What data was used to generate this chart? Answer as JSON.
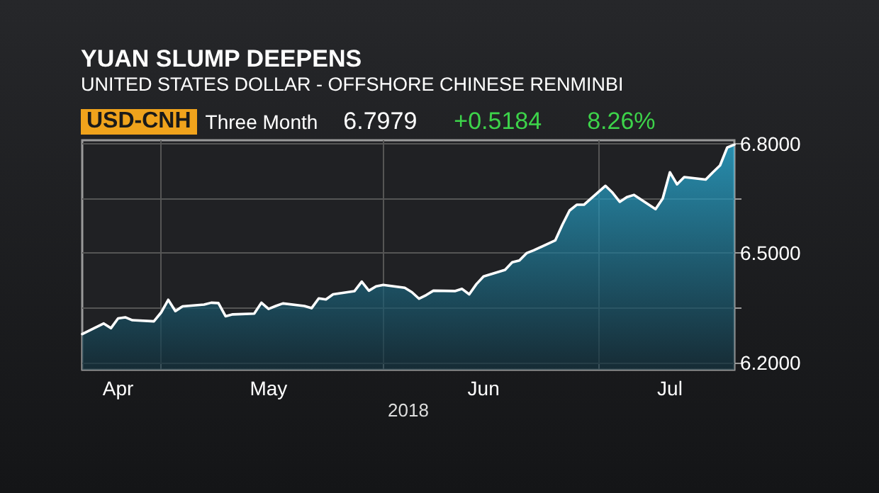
{
  "chart_data": {
    "type": "area",
    "title": "YUAN SLUMP DEEPENS",
    "subtitle": "UNITED STATES DOLLAR - OFFSHORE CHINESE RENMINBI",
    "annotations": [
      "USD-CNH",
      "Three Month",
      "6.7979",
      "+0.5184",
      "8.26%"
    ],
    "xlabel": "2018",
    "x": [
      "2018-04-20",
      "2018-04-23",
      "2018-04-24",
      "2018-04-25",
      "2018-04-26",
      "2018-04-27",
      "2018-04-30",
      "2018-05-01",
      "2018-05-02",
      "2018-05-03",
      "2018-05-04",
      "2018-05-07",
      "2018-05-08",
      "2018-05-09",
      "2018-05-10",
      "2018-05-11",
      "2018-05-14",
      "2018-05-15",
      "2018-05-16",
      "2018-05-17",
      "2018-05-18",
      "2018-05-21",
      "2018-05-22",
      "2018-05-23",
      "2018-05-24",
      "2018-05-25",
      "2018-05-28",
      "2018-05-29",
      "2018-05-30",
      "2018-05-31",
      "2018-06-01",
      "2018-06-04",
      "2018-06-05",
      "2018-06-06",
      "2018-06-07",
      "2018-06-08",
      "2018-06-11",
      "2018-06-12",
      "2018-06-13",
      "2018-06-14",
      "2018-06-15",
      "2018-06-18",
      "2018-06-19",
      "2018-06-20",
      "2018-06-21",
      "2018-06-22",
      "2018-06-25",
      "2018-06-26",
      "2018-06-27",
      "2018-06-28",
      "2018-06-29",
      "2018-07-02",
      "2018-07-03",
      "2018-07-04",
      "2018-07-05",
      "2018-07-06",
      "2018-07-09",
      "2018-07-10",
      "2018-07-11",
      "2018-07-12",
      "2018-07-13",
      "2018-07-16",
      "2018-07-17",
      "2018-07-18",
      "2018-07-19",
      "2018-07-20"
    ],
    "series": [
      {
        "color": "#2bbbe8",
        "values": [
          6.278,
          6.307,
          6.294,
          6.321,
          6.324,
          6.316,
          6.313,
          6.337,
          6.372,
          6.341,
          6.354,
          6.359,
          6.364,
          6.363,
          6.327,
          6.332,
          6.334,
          6.364,
          6.347,
          6.355,
          6.362,
          6.355,
          6.349,
          6.376,
          6.373,
          6.387,
          6.396,
          6.422,
          6.397,
          6.409,
          6.413,
          6.405,
          6.393,
          6.375,
          6.385,
          6.397,
          6.396,
          6.402,
          6.387,
          6.415,
          6.436,
          6.454,
          6.475,
          6.48,
          6.5,
          6.508,
          6.535,
          6.578,
          6.617,
          6.633,
          6.633,
          6.685,
          6.666,
          6.641,
          6.654,
          6.66,
          6.621,
          6.65,
          6.722,
          6.689,
          6.709,
          6.702,
          6.722,
          6.741,
          6.79,
          6.798
        ]
      }
    ],
    "xlim": [
      "2018-04-20",
      "2018-07-20"
    ],
    "xticks": [
      {
        "value": "2018-04-25",
        "label": "Apr"
      },
      {
        "value": "2018-05-01",
        "label": null
      },
      {
        "value": "2018-05-16",
        "label": "May"
      },
      {
        "value": "2018-06-01",
        "label": null
      },
      {
        "value": "2018-06-15",
        "label": "Jun"
      },
      {
        "value": "2018-07-01",
        "label": null
      },
      {
        "value": "2018-07-11",
        "label": "Jul"
      }
    ],
    "ylim": [
      6.18,
      6.81
    ],
    "yticks": [
      {
        "value": 6.2,
        "label": "6.2000"
      },
      {
        "value": 6.35,
        "label": null
      },
      {
        "value": 6.5,
        "label": "6.5000"
      },
      {
        "value": 6.65,
        "label": null
      },
      {
        "value": 6.8,
        "label": "6.8000"
      }
    ],
    "grid": true,
    "marker": "none",
    "line_style": "solid"
  }
}
